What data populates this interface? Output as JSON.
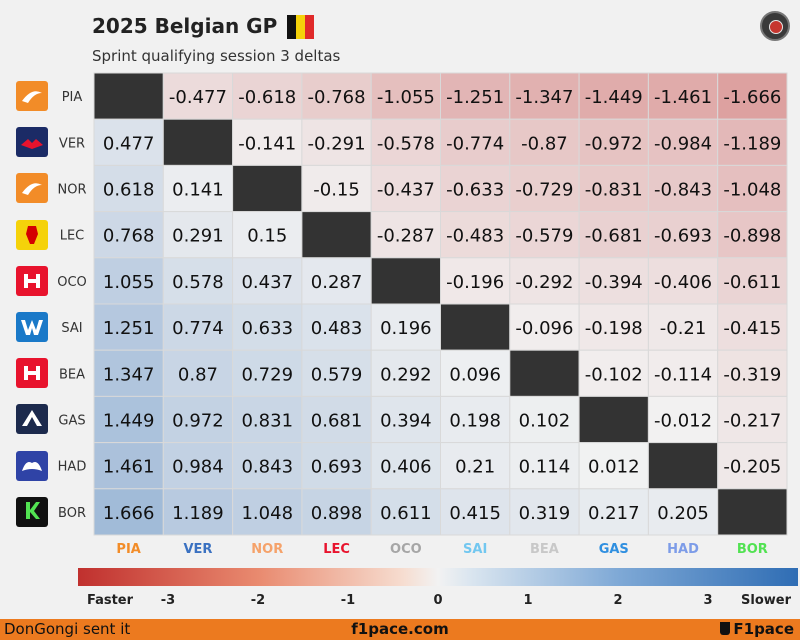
{
  "header": {
    "title": "2025 Belgian GP",
    "subtitle": "Sprint qualifying session 3 deltas",
    "flag_colors": [
      "#111111",
      "#f5d20a",
      "#e02a2a"
    ]
  },
  "footer": {
    "left": "DonGongi sent it",
    "center": "f1pace.com",
    "right": "F1pace"
  },
  "colors": {
    "faster": "#c0302e",
    "slower": "#2f6db4",
    "diagonal": "#333333",
    "footer_bg": "#ec7a1f"
  },
  "chart_data": {
    "type": "heatmap",
    "title": "2025 Belgian GP",
    "subtitle": "Sprint qualifying session 3 deltas",
    "row_labels": [
      "PIA",
      "VER",
      "NOR",
      "LEC",
      "OCO",
      "SAI",
      "BEA",
      "GAS",
      "HAD",
      "BOR"
    ],
    "column_labels": [
      "PIA",
      "VER",
      "NOR",
      "LEC",
      "OCO",
      "SAI",
      "BEA",
      "GAS",
      "HAD",
      "BOR"
    ],
    "column_label_colors": [
      "#f28c28",
      "#3a71c1",
      "#f5a26a",
      "#e8132d",
      "#a6a6a6",
      "#72c7f0",
      "#c8c8c8",
      "#2f8fe0",
      "#7d9ce8",
      "#52e252"
    ],
    "team_logos": [
      {
        "name": "mclaren-logo",
        "bg": "#f28c28",
        "fg": "#ffffff"
      },
      {
        "name": "red-bull-logo",
        "bg": "#1b2b66",
        "fg": "#e8132d"
      },
      {
        "name": "mclaren-logo",
        "bg": "#f28c28",
        "fg": "#ffffff"
      },
      {
        "name": "ferrari-logo",
        "bg": "#f5d20a",
        "fg": "#d40000"
      },
      {
        "name": "haas-logo",
        "bg": "#e8132d",
        "fg": "#ffffff"
      },
      {
        "name": "williams-logo",
        "bg": "#1a79c8",
        "fg": "#ffffff"
      },
      {
        "name": "haas-logo",
        "bg": "#e8132d",
        "fg": "#ffffff"
      },
      {
        "name": "alpine-logo",
        "bg": "#1c2a4d",
        "fg": "#ffffff"
      },
      {
        "name": "racing-bulls-logo",
        "bg": "#2f43a6",
        "fg": "#ffffff"
      },
      {
        "name": "sauber-logo",
        "bg": "#111111",
        "fg": "#52e252"
      }
    ],
    "values": [
      [
        null,
        -0.477,
        -0.618,
        -0.768,
        -1.055,
        -1.251,
        -1.347,
        -1.449,
        -1.461,
        -1.666
      ],
      [
        0.477,
        null,
        -0.141,
        -0.291,
        -0.578,
        -0.774,
        -0.87,
        -0.972,
        -0.984,
        -1.189
      ],
      [
        0.618,
        0.141,
        null,
        -0.15,
        -0.437,
        -0.633,
        -0.729,
        -0.831,
        -0.843,
        -1.048
      ],
      [
        0.768,
        0.291,
        0.15,
        null,
        -0.287,
        -0.483,
        -0.579,
        -0.681,
        -0.693,
        -0.898
      ],
      [
        1.055,
        0.578,
        0.437,
        0.287,
        null,
        -0.196,
        -0.292,
        -0.394,
        -0.406,
        -0.611
      ],
      [
        1.251,
        0.774,
        0.633,
        0.483,
        0.196,
        null,
        -0.096,
        -0.198,
        -0.21,
        -0.415
      ],
      [
        1.347,
        0.87,
        0.729,
        0.579,
        0.292,
        0.096,
        null,
        -0.102,
        -0.114,
        -0.319
      ],
      [
        1.449,
        0.972,
        0.831,
        0.681,
        0.394,
        0.198,
        0.102,
        null,
        -0.012,
        -0.217
      ],
      [
        1.461,
        0.984,
        0.843,
        0.693,
        0.406,
        0.21,
        0.114,
        0.012,
        null,
        -0.205
      ],
      [
        1.666,
        1.189,
        1.048,
        0.898,
        0.611,
        0.415,
        0.319,
        0.217,
        0.205,
        null
      ]
    ],
    "colorbar": {
      "range": [
        -4,
        4
      ],
      "ticks": [
        -3,
        -2,
        -1,
        0,
        1,
        2,
        3
      ],
      "tick_labels": [
        "-3",
        "-2",
        "-1",
        "0",
        "1",
        "2",
        "3"
      ],
      "left_label": "Faster",
      "right_label": "Slower"
    }
  }
}
